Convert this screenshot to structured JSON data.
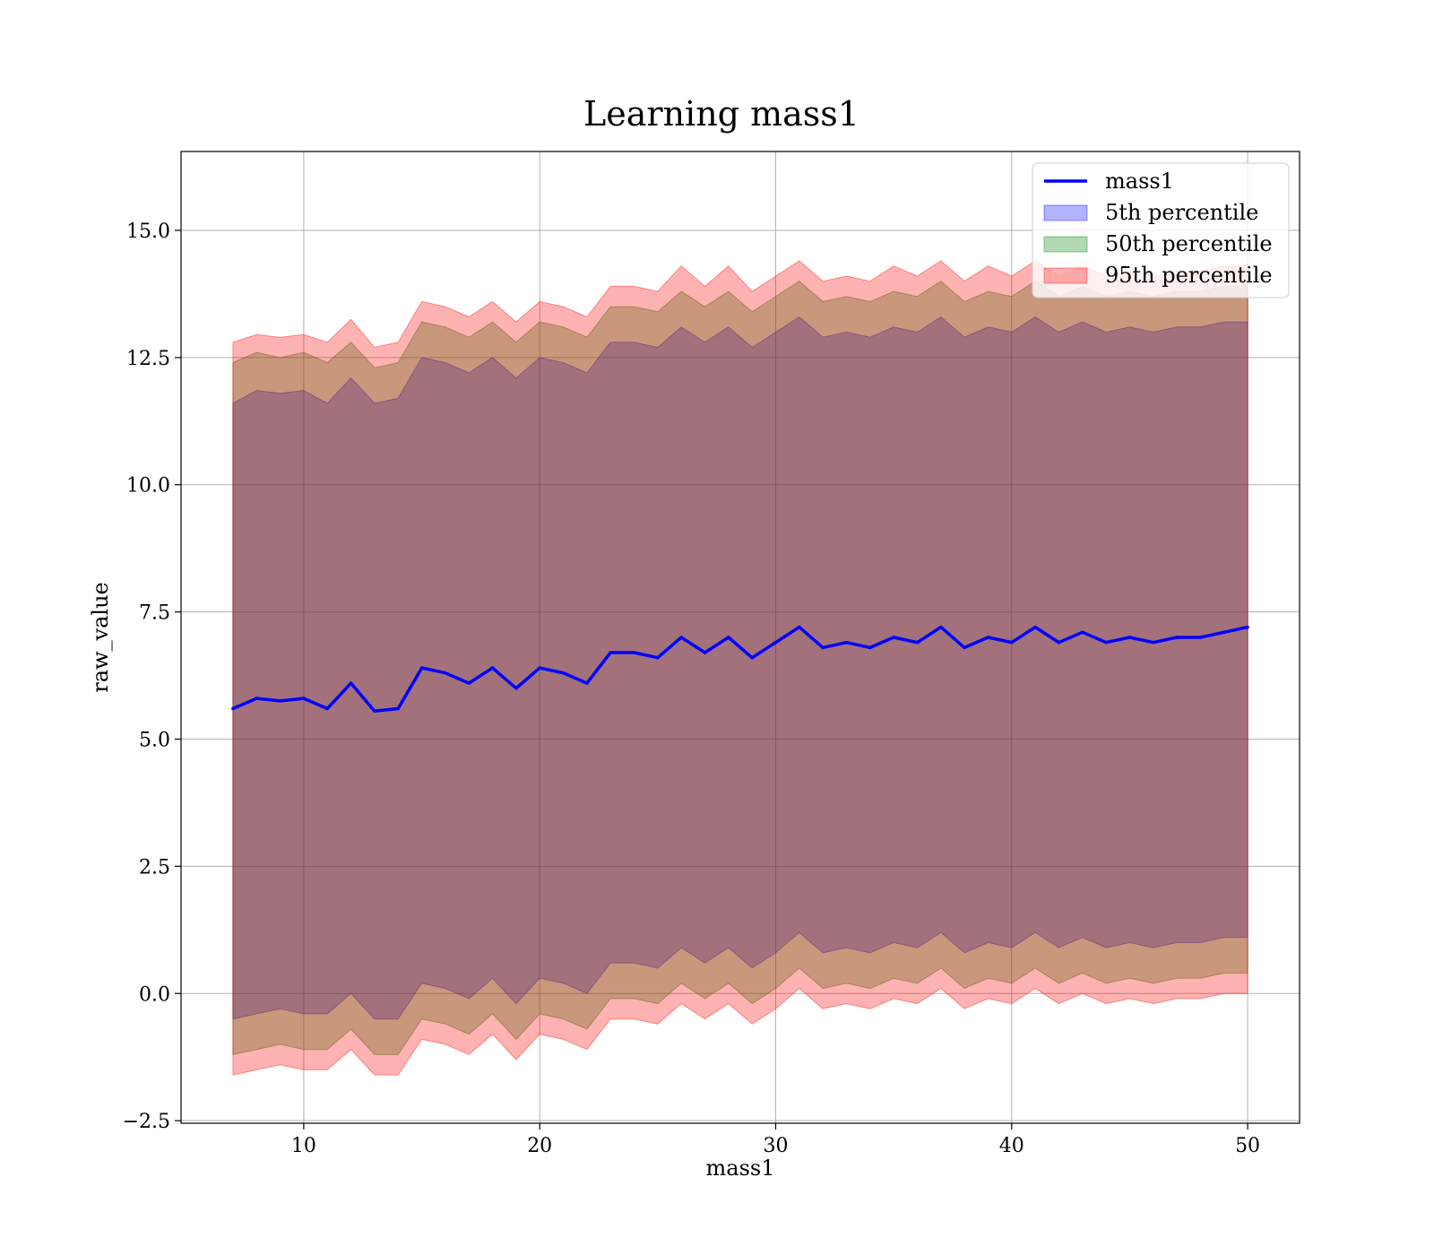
{
  "chart_data": {
    "type": "area",
    "title": "Learning mass1",
    "xlabel": "mass1",
    "ylabel": "raw_value",
    "xlim": [
      4.8,
      52.2
    ],
    "ylim": [
      -2.55,
      16.55
    ],
    "xticks": [
      10,
      20,
      30,
      40,
      50
    ],
    "xtick_labels": [
      "10",
      "20",
      "30",
      "40",
      "50"
    ],
    "yticks": [
      -2.5,
      0.0,
      2.5,
      5.0,
      7.5,
      10.0,
      12.5,
      15.0
    ],
    "ytick_labels": [
      "−2.5",
      "0.0",
      "2.5",
      "5.0",
      "7.5",
      "10.0",
      "12.5",
      "15.0"
    ],
    "grid": true,
    "legend_position": "top-right",
    "x": [
      7.0,
      8.0,
      9.0,
      10.0,
      11.0,
      12.0,
      13.0,
      14.0,
      15.0,
      16.0,
      17.0,
      18.0,
      19.0,
      20.0,
      21.0,
      22.0,
      23.0,
      24.0,
      25.0,
      26.0,
      27.0,
      28.0,
      29.0,
      30.0,
      31.0,
      32.0,
      33.0,
      34.0,
      35.0,
      36.0,
      37.0,
      38.0,
      39.0,
      40.0,
      41.0,
      42.0,
      43.0,
      44.0,
      45.0,
      46.0,
      47.0,
      48.0,
      49.0,
      50.0
    ],
    "series": [
      {
        "name": "mass1",
        "kind": "line",
        "color": "#0000ff",
        "values": [
          5.6,
          5.8,
          5.75,
          5.8,
          5.6,
          6.1,
          5.55,
          5.6,
          6.4,
          6.3,
          6.1,
          6.4,
          6.0,
          6.4,
          6.3,
          6.1,
          6.7,
          6.7,
          6.6,
          7.0,
          6.7,
          7.0,
          6.6,
          6.9,
          7.2,
          6.8,
          6.9,
          6.8,
          7.0,
          6.9,
          7.2,
          6.8,
          7.0,
          6.9,
          7.2,
          6.9,
          7.1,
          6.9,
          7.0,
          6.9,
          7.0,
          7.0,
          7.1,
          7.2
        ]
      },
      {
        "name": "5th percentile",
        "kind": "band",
        "color": "#0000ff",
        "lower": [
          -0.5,
          -0.4,
          -0.3,
          -0.4,
          -0.4,
          0.0,
          -0.5,
          -0.5,
          0.2,
          0.1,
          -0.1,
          0.3,
          -0.2,
          0.3,
          0.2,
          0.0,
          0.6,
          0.6,
          0.5,
          0.9,
          0.6,
          0.9,
          0.5,
          0.8,
          1.2,
          0.8,
          0.9,
          0.8,
          1.0,
          0.9,
          1.2,
          0.8,
          1.0,
          0.9,
          1.2,
          0.9,
          1.1,
          0.9,
          1.0,
          0.9,
          1.0,
          1.0,
          1.1,
          1.1
        ],
        "upper": [
          11.6,
          11.85,
          11.8,
          11.85,
          11.6,
          12.1,
          11.6,
          11.7,
          12.5,
          12.4,
          12.2,
          12.5,
          12.1,
          12.5,
          12.4,
          12.2,
          12.8,
          12.8,
          12.7,
          13.1,
          12.8,
          13.1,
          12.7,
          13.0,
          13.3,
          12.9,
          13.0,
          12.9,
          13.1,
          13.0,
          13.3,
          12.9,
          13.1,
          13.0,
          13.3,
          13.0,
          13.2,
          13.0,
          13.1,
          13.0,
          13.1,
          13.1,
          13.2,
          13.2
        ]
      },
      {
        "name": "50th percentile",
        "kind": "band",
        "color": "#008000",
        "lower": [
          -1.2,
          -1.1,
          -1.0,
          -1.1,
          -1.1,
          -0.7,
          -1.2,
          -1.2,
          -0.5,
          -0.6,
          -0.8,
          -0.4,
          -0.9,
          -0.4,
          -0.5,
          -0.7,
          -0.1,
          -0.1,
          -0.2,
          0.2,
          -0.1,
          0.2,
          -0.2,
          0.1,
          0.5,
          0.1,
          0.2,
          0.1,
          0.3,
          0.2,
          0.5,
          0.1,
          0.3,
          0.2,
          0.5,
          0.2,
          0.4,
          0.2,
          0.3,
          0.2,
          0.3,
          0.3,
          0.4,
          0.4
        ],
        "upper": [
          12.4,
          12.6,
          12.5,
          12.6,
          12.4,
          12.8,
          12.3,
          12.4,
          13.2,
          13.1,
          12.9,
          13.2,
          12.8,
          13.2,
          13.1,
          12.9,
          13.5,
          13.5,
          13.4,
          13.8,
          13.5,
          13.8,
          13.4,
          13.7,
          14.0,
          13.6,
          13.7,
          13.6,
          13.8,
          13.7,
          14.0,
          13.6,
          13.8,
          13.7,
          14.0,
          13.7,
          13.9,
          13.7,
          13.8,
          13.7,
          13.8,
          13.8,
          13.9,
          13.9
        ]
      },
      {
        "name": "95th percentile",
        "kind": "band",
        "color": "#ff0000",
        "lower": [
          -1.6,
          -1.5,
          -1.4,
          -1.5,
          -1.5,
          -1.1,
          -1.6,
          -1.6,
          -0.9,
          -1.0,
          -1.2,
          -0.8,
          -1.3,
          -0.8,
          -0.9,
          -1.1,
          -0.5,
          -0.5,
          -0.6,
          -0.2,
          -0.5,
          -0.2,
          -0.6,
          -0.3,
          0.1,
          -0.3,
          -0.2,
          -0.3,
          -0.1,
          -0.2,
          0.1,
          -0.3,
          -0.1,
          -0.2,
          0.1,
          -0.2,
          0.0,
          -0.2,
          -0.1,
          -0.2,
          -0.1,
          -0.1,
          0.0,
          0.0
        ],
        "upper": [
          12.8,
          12.95,
          12.9,
          12.95,
          12.8,
          13.25,
          12.7,
          12.8,
          13.6,
          13.5,
          13.3,
          13.6,
          13.2,
          13.6,
          13.5,
          13.3,
          13.9,
          13.9,
          13.8,
          14.3,
          13.9,
          14.3,
          13.8,
          14.1,
          14.4,
          14.0,
          14.1,
          14.0,
          14.3,
          14.1,
          14.4,
          14.0,
          14.3,
          14.1,
          14.4,
          14.1,
          14.3,
          14.1,
          14.2,
          14.1,
          14.2,
          14.2,
          14.3,
          14.3
        ]
      }
    ]
  }
}
